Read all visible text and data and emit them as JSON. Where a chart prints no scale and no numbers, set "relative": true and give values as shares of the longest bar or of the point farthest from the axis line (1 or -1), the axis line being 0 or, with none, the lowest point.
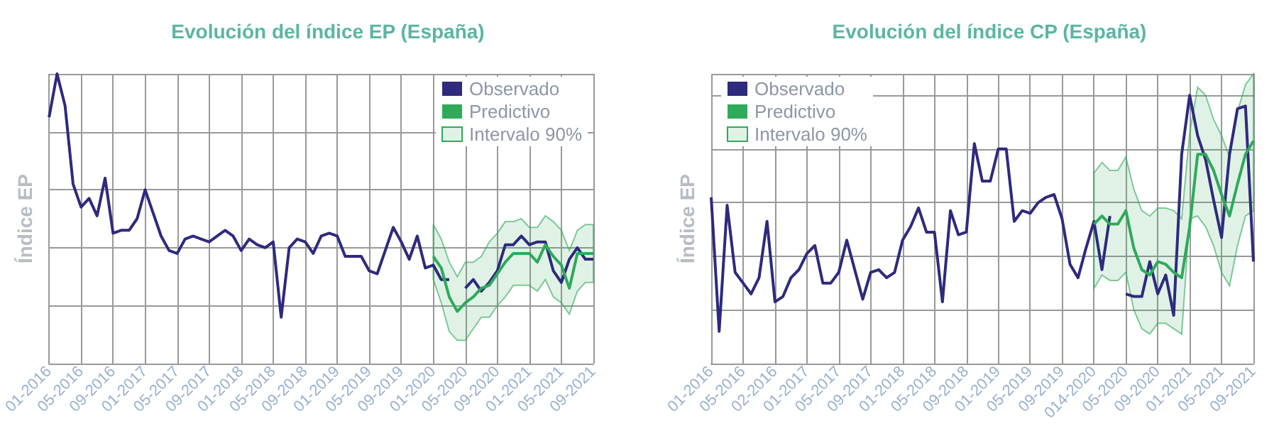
{
  "chart_data": [
    {
      "type": "line",
      "title": "Evolución del índice EP (España)",
      "ylabel": "Índice EP",
      "annotations": [
        "Intervalo 90%"
      ],
      "relative": true,
      "grid": true,
      "legend": "top right",
      "categories": [
        "01-2016",
        null,
        null,
        null,
        "05-2016",
        null,
        null,
        null,
        "09-2016",
        null,
        null,
        null,
        "01-2017",
        null,
        null,
        null,
        "05-2017",
        null,
        null,
        null,
        "09-2017",
        null,
        null,
        null,
        "01-2018",
        null,
        null,
        null,
        "05-2018",
        null,
        null,
        null,
        "09-2018",
        null,
        null,
        null,
        "01-2019",
        null,
        null,
        null,
        "05-2019",
        null,
        null,
        null,
        "09-2019",
        null,
        null,
        null,
        "01-2020",
        null,
        null,
        null,
        "05-2020",
        null,
        null,
        null,
        "09-2020",
        null,
        null,
        null,
        "01-2021",
        null,
        null,
        null,
        "05-2021",
        null,
        null,
        null,
        "09-2021"
      ],
      "series": [
        {
          "name": "Observado",
          "color": "#2e2a7e",
          "values": [
            0.85,
            1,
            0.89,
            0.62,
            0.54,
            0.57,
            0.51,
            0.64,
            0.45,
            0.46,
            0.46,
            0.5,
            0.6,
            0.52,
            0.44,
            0.39,
            0.38,
            0.43,
            0.44,
            0.43,
            0.42,
            0.44,
            0.46,
            0.44,
            0.39,
            0.43,
            0.41,
            0.4,
            0.42,
            0.16,
            0.4,
            0.43,
            0.42,
            0.38,
            0.44,
            0.45,
            0.44,
            0.37,
            0.37,
            0.37,
            0.32,
            0.31,
            0.39,
            0.47,
            0.42,
            0.36,
            0.44,
            0.33,
            0.34,
            0.29,
            0.29,
            null,
            0.26,
            0.29,
            0.25,
            0.28,
            0.32,
            0.41,
            0.41,
            0.44,
            0.41,
            0.42,
            0.42,
            0.32,
            0.28,
            0.36,
            0.4,
            0.36,
            0.36
          ]
        },
        {
          "name": "Predictivo",
          "color": "#2eaa5a",
          "values": [
            null,
            null,
            null,
            null,
            null,
            null,
            null,
            null,
            null,
            null,
            null,
            null,
            null,
            null,
            null,
            null,
            null,
            null,
            null,
            null,
            null,
            null,
            null,
            null,
            null,
            null,
            null,
            null,
            null,
            null,
            null,
            null,
            null,
            null,
            null,
            null,
            null,
            null,
            null,
            null,
            null,
            null,
            null,
            null,
            null,
            null,
            null,
            null,
            0.37,
            0.33,
            0.23,
            0.18,
            0.21,
            0.23,
            0.26,
            0.27,
            0.31,
            0.35,
            0.38,
            0.38,
            0.38,
            0.35,
            0.41,
            0.37,
            0.34,
            0.26,
            0.38,
            0.38,
            0.38
          ],
          "upper": [
            null,
            null,
            null,
            null,
            null,
            null,
            null,
            null,
            null,
            null,
            null,
            null,
            null,
            null,
            null,
            null,
            null,
            null,
            null,
            null,
            null,
            null,
            null,
            null,
            null,
            null,
            null,
            null,
            null,
            null,
            null,
            null,
            null,
            null,
            null,
            null,
            null,
            null,
            null,
            null,
            null,
            null,
            null,
            null,
            null,
            null,
            null,
            null,
            0.48,
            0.43,
            0.35,
            0.3,
            0.35,
            0.35,
            0.37,
            0.42,
            0.45,
            0.49,
            0.49,
            0.5,
            0.47,
            0.47,
            0.51,
            0.49,
            0.46,
            0.39,
            0.46,
            0.48,
            0.48
          ],
          "lower": [
            null,
            null,
            null,
            null,
            null,
            null,
            null,
            null,
            null,
            null,
            null,
            null,
            null,
            null,
            null,
            null,
            null,
            null,
            null,
            null,
            null,
            null,
            null,
            null,
            null,
            null,
            null,
            null,
            null,
            null,
            null,
            null,
            null,
            null,
            null,
            null,
            null,
            null,
            null,
            null,
            null,
            null,
            null,
            null,
            null,
            null,
            null,
            null,
            0.29,
            0.21,
            0.11,
            0.08,
            0.08,
            0.12,
            0.16,
            0.16,
            0.2,
            0.23,
            0.27,
            0.27,
            0.27,
            0.25,
            0.29,
            0.23,
            0.21,
            0.17,
            0.25,
            0.28,
            0.28
          ]
        }
      ]
    },
    {
      "type": "line",
      "title": "Evolución del índice CP (España)",
      "ylabel": "Índice EP",
      "annotations": [
        "Intervalo 90%"
      ],
      "relative": true,
      "grid": true,
      "legend": "top left",
      "categories": [
        "01-2016",
        null,
        null,
        null,
        "05-2016",
        null,
        null,
        null,
        "02-2016",
        null,
        null,
        null,
        "01-2017",
        null,
        null,
        null,
        "05-2017",
        null,
        null,
        null,
        "09-2017",
        null,
        null,
        null,
        "01-2018",
        null,
        null,
        null,
        "05-2018",
        null,
        null,
        null,
        "09-2018",
        null,
        null,
        null,
        "01-2019",
        null,
        null,
        null,
        "05-2019",
        null,
        null,
        null,
        "09-2019",
        null,
        null,
        null,
        "014-2020",
        null,
        null,
        null,
        "05-2020",
        null,
        null,
        null,
        "09-2020",
        null,
        null,
        null,
        "01-2021",
        null,
        null,
        null,
        "05-2021",
        null,
        null,
        null,
        "09-2021"
      ],
      "series": [
        {
          "name": "Observado",
          "color": "#2e2a7e",
          "values": [
            0.62,
            0.12,
            0.59,
            0.34,
            0.3,
            0.26,
            0.32,
            0.53,
            0.23,
            0.25,
            0.32,
            0.35,
            0.41,
            0.44,
            0.3,
            0.3,
            0.34,
            0.46,
            0.35,
            0.24,
            0.34,
            0.35,
            0.32,
            0.34,
            0.46,
            0.51,
            0.58,
            0.49,
            0.49,
            0.23,
            0.57,
            0.48,
            0.49,
            0.82,
            0.68,
            0.68,
            0.8,
            0.8,
            0.53,
            0.57,
            0.56,
            0.6,
            0.62,
            0.63,
            0.54,
            0.37,
            0.32,
            0.43,
            0.53,
            0.35,
            0.55,
            null,
            0.26,
            0.25,
            0.25,
            0.38,
            0.26,
            0.33,
            0.18,
            0.78,
            1,
            0.85,
            0.76,
            0.61,
            0.47,
            0.78,
            0.95,
            0.96,
            0.38
          ]
        },
        {
          "name": "Predictivo",
          "color": "#2eaa5a",
          "values": [
            null,
            null,
            null,
            null,
            null,
            null,
            null,
            null,
            null,
            null,
            null,
            null,
            null,
            null,
            null,
            null,
            null,
            null,
            null,
            null,
            null,
            null,
            null,
            null,
            null,
            null,
            null,
            null,
            null,
            null,
            null,
            null,
            null,
            null,
            null,
            null,
            null,
            null,
            null,
            null,
            null,
            null,
            null,
            null,
            null,
            null,
            null,
            null,
            0.52,
            0.55,
            0.52,
            0.52,
            0.57,
            0.43,
            0.35,
            0.33,
            0.38,
            0.37,
            0.34,
            0.32,
            0.51,
            0.78,
            0.78,
            0.72,
            0.63,
            0.55,
            0.67,
            0.78,
            0.83
          ],
          "upper": [
            null,
            null,
            null,
            null,
            null,
            null,
            null,
            null,
            null,
            null,
            null,
            null,
            null,
            null,
            null,
            null,
            null,
            null,
            null,
            null,
            null,
            null,
            null,
            null,
            null,
            null,
            null,
            null,
            null,
            null,
            null,
            null,
            null,
            null,
            null,
            null,
            null,
            null,
            null,
            null,
            null,
            null,
            null,
            null,
            null,
            null,
            null,
            null,
            0.71,
            0.75,
            0.72,
            0.72,
            0.77,
            0.65,
            0.57,
            0.55,
            0.58,
            0.58,
            0.57,
            0.54,
            0.86,
            1.03,
            1,
            0.91,
            0.85,
            0.77,
            0.94,
            1.04,
            1.08
          ],
          "lower": [
            null,
            null,
            null,
            null,
            null,
            null,
            null,
            null,
            null,
            null,
            null,
            null,
            null,
            null,
            null,
            null,
            null,
            null,
            null,
            null,
            null,
            null,
            null,
            null,
            null,
            null,
            null,
            null,
            null,
            null,
            null,
            null,
            null,
            null,
            null,
            null,
            null,
            null,
            null,
            null,
            null,
            null,
            null,
            null,
            null,
            null,
            null,
            null,
            0.28,
            0.33,
            0.31,
            0.31,
            0.34,
            0.2,
            0.13,
            0.11,
            0.15,
            0.15,
            0.13,
            0.11,
            0.54,
            0.55,
            0.51,
            0.44,
            0.34,
            0.29,
            0.44,
            0.55,
            0.57
          ]
        }
      ]
    }
  ]
}
